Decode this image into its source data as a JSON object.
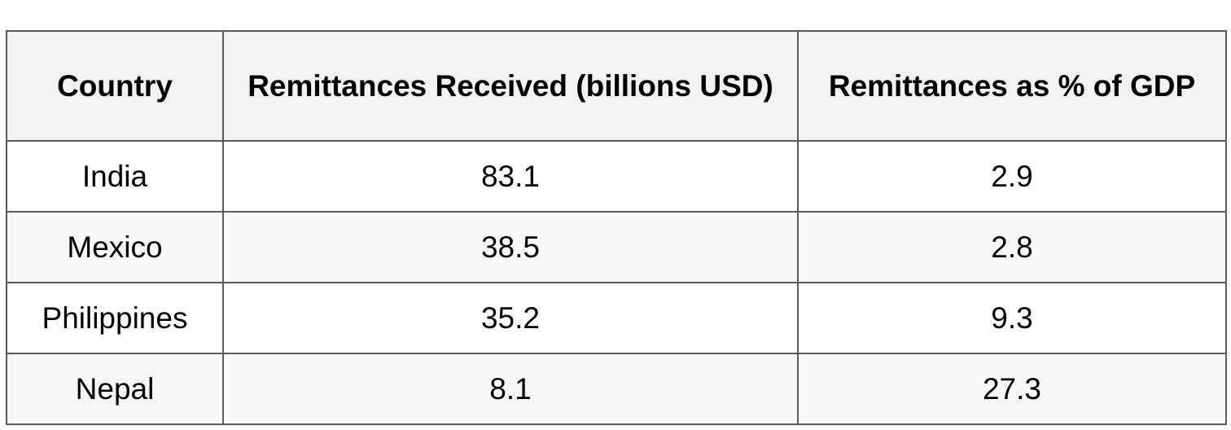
{
  "table": {
    "headers": [
      "Country",
      "Remittances Received (billions USD)",
      "Remittances as % of GDP"
    ],
    "rows": [
      [
        "India",
        "83.1",
        "2.9"
      ],
      [
        "Mexico",
        "38.5",
        "2.8"
      ],
      [
        "Philippines",
        "35.2",
        "9.3"
      ],
      [
        "Nepal",
        "8.1",
        "27.3"
      ]
    ]
  },
  "chart_data": {
    "type": "table",
    "columns": [
      "Country",
      "Remittances Received (billions USD)",
      "Remittances as % of GDP"
    ],
    "rows": [
      {
        "Country": "India",
        "Remittances Received (billions USD)": 83.1,
        "Remittances as % of GDP": 2.9
      },
      {
        "Country": "Mexico",
        "Remittances Received (billions USD)": 38.5,
        "Remittances as % of GDP": 2.8
      },
      {
        "Country": "Philippines",
        "Remittances Received (billions USD)": 35.2,
        "Remittances as % of GDP": 9.3
      },
      {
        "Country": "Nepal",
        "Remittances Received (billions USD)": 8.1,
        "Remittances as % of GDP": 27.3
      }
    ]
  }
}
